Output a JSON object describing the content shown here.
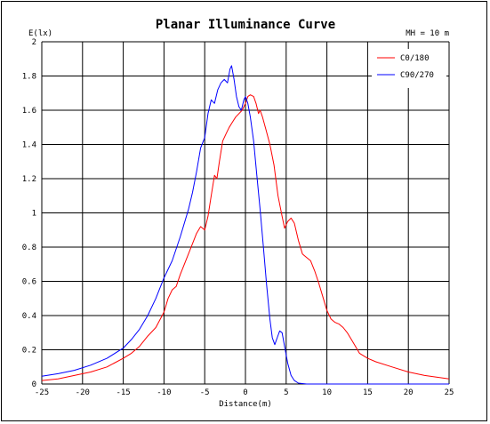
{
  "chart_data": {
    "type": "line",
    "title": "Planar Illuminance Curve",
    "annotation": "MH = 10 m",
    "xlabel": "Distance(m)",
    "ylabel": "E(lx)",
    "xlim": [
      -25,
      25
    ],
    "ylim": [
      0,
      2
    ],
    "x_ticks": [
      -25,
      -20,
      -15,
      -10,
      -5,
      0,
      5,
      10,
      15,
      20,
      25
    ],
    "y_ticks": [
      0,
      0.2,
      0.4,
      0.6,
      0.8,
      1,
      1.2,
      1.4,
      1.6,
      1.8,
      2
    ],
    "grid": true,
    "legend_position": "top-right",
    "series": [
      {
        "name": "C0/180",
        "color": "#ff0000",
        "points": [
          [
            -25,
            0.02
          ],
          [
            -23,
            0.03
          ],
          [
            -21,
            0.05
          ],
          [
            -19,
            0.07
          ],
          [
            -17,
            0.1
          ],
          [
            -15,
            0.15
          ],
          [
            -14,
            0.18
          ],
          [
            -13,
            0.22
          ],
          [
            -12,
            0.28
          ],
          [
            -11,
            0.33
          ],
          [
            -10,
            0.42
          ],
          [
            -9.5,
            0.5
          ],
          [
            -9,
            0.55
          ],
          [
            -8.5,
            0.57
          ],
          [
            -8,
            0.64
          ],
          [
            -7.5,
            0.7
          ],
          [
            -7,
            0.76
          ],
          [
            -6.5,
            0.82
          ],
          [
            -6,
            0.88
          ],
          [
            -5.5,
            0.92
          ],
          [
            -5,
            0.9
          ],
          [
            -4.6,
            0.98
          ],
          [
            -4.2,
            1.1
          ],
          [
            -3.8,
            1.22
          ],
          [
            -3.5,
            1.2
          ],
          [
            -3.2,
            1.3
          ],
          [
            -2.8,
            1.42
          ],
          [
            -2.4,
            1.46
          ],
          [
            -2,
            1.5
          ],
          [
            -1.6,
            1.53
          ],
          [
            -1.2,
            1.56
          ],
          [
            -0.8,
            1.58
          ],
          [
            -0.4,
            1.6
          ],
          [
            0,
            1.64
          ],
          [
            0.3,
            1.68
          ],
          [
            0.6,
            1.69
          ],
          [
            1,
            1.68
          ],
          [
            1.3,
            1.64
          ],
          [
            1.6,
            1.58
          ],
          [
            1.8,
            1.6
          ],
          [
            2.1,
            1.56
          ],
          [
            2.5,
            1.49
          ],
          [
            3,
            1.4
          ],
          [
            3.5,
            1.28
          ],
          [
            4,
            1.1
          ],
          [
            4.5,
            0.98
          ],
          [
            4.8,
            0.91
          ],
          [
            5.2,
            0.95
          ],
          [
            5.6,
            0.97
          ],
          [
            6,
            0.94
          ],
          [
            6.5,
            0.84
          ],
          [
            7,
            0.76
          ],
          [
            7.5,
            0.74
          ],
          [
            8,
            0.72
          ],
          [
            8.5,
            0.66
          ],
          [
            9,
            0.59
          ],
          [
            9.5,
            0.51
          ],
          [
            10,
            0.43
          ],
          [
            10.5,
            0.38
          ],
          [
            11,
            0.36
          ],
          [
            11.5,
            0.35
          ],
          [
            12,
            0.33
          ],
          [
            12.5,
            0.3
          ],
          [
            13,
            0.26
          ],
          [
            13.5,
            0.22
          ],
          [
            14,
            0.18
          ],
          [
            15,
            0.15
          ],
          [
            16,
            0.13
          ],
          [
            18,
            0.1
          ],
          [
            20,
            0.07
          ],
          [
            22,
            0.05
          ],
          [
            25,
            0.03
          ]
        ]
      },
      {
        "name": "C90/270",
        "color": "#0000ff",
        "points": [
          [
            -25,
            0.045
          ],
          [
            -23,
            0.06
          ],
          [
            -21,
            0.08
          ],
          [
            -19,
            0.11
          ],
          [
            -17,
            0.15
          ],
          [
            -15,
            0.21
          ],
          [
            -14,
            0.26
          ],
          [
            -13,
            0.32
          ],
          [
            -12,
            0.4
          ],
          [
            -11,
            0.5
          ],
          [
            -10,
            0.62
          ],
          [
            -9,
            0.72
          ],
          [
            -8,
            0.86
          ],
          [
            -7,
            1.02
          ],
          [
            -6.5,
            1.12
          ],
          [
            -6,
            1.24
          ],
          [
            -5.5,
            1.38
          ],
          [
            -5,
            1.44
          ],
          [
            -4.6,
            1.58
          ],
          [
            -4.2,
            1.66
          ],
          [
            -3.8,
            1.64
          ],
          [
            -3.4,
            1.72
          ],
          [
            -3,
            1.76
          ],
          [
            -2.6,
            1.78
          ],
          [
            -2.2,
            1.76
          ],
          [
            -1.9,
            1.84
          ],
          [
            -1.7,
            1.86
          ],
          [
            -1.4,
            1.78
          ],
          [
            -1.1,
            1.68
          ],
          [
            -0.8,
            1.62
          ],
          [
            -0.5,
            1.6
          ],
          [
            -0.2,
            1.66
          ],
          [
            0,
            1.68
          ],
          [
            0.3,
            1.64
          ],
          [
            0.6,
            1.56
          ],
          [
            1,
            1.42
          ],
          [
            1.4,
            1.22
          ],
          [
            1.8,
            1.02
          ],
          [
            2.2,
            0.8
          ],
          [
            2.6,
            0.58
          ],
          [
            3,
            0.38
          ],
          [
            3.3,
            0.27
          ],
          [
            3.6,
            0.23
          ],
          [
            3.9,
            0.27
          ],
          [
            4.2,
            0.31
          ],
          [
            4.5,
            0.3
          ],
          [
            4.8,
            0.22
          ],
          [
            5.2,
            0.12
          ],
          [
            5.6,
            0.05
          ],
          [
            6,
            0.02
          ],
          [
            6.5,
            0.005
          ],
          [
            7.5,
            0
          ],
          [
            10,
            0
          ],
          [
            25,
            0
          ]
        ]
      }
    ]
  }
}
